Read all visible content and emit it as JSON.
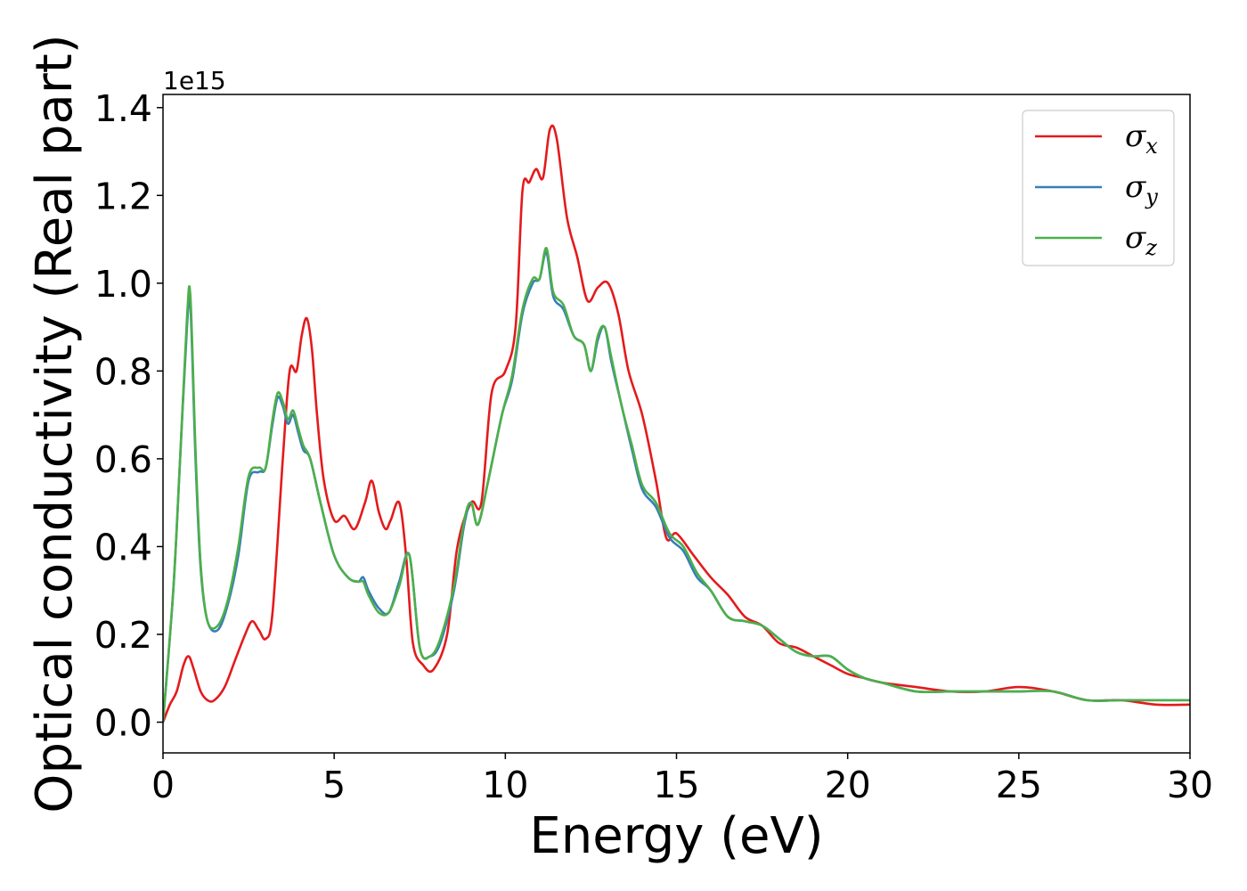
{
  "chart_data": {
    "type": "line",
    "xlabel": "Energy (eV)",
    "ylabel": "Optical conductivity (Real part)",
    "y_offset_label": "1e15",
    "y_scale": 1000000000000000.0,
    "xlim": [
      0,
      30
    ],
    "ylim": [
      -0.07,
      1.43
    ],
    "xticks": [
      0,
      5,
      10,
      15,
      20,
      25,
      30
    ],
    "xtick_labels": [
      "0",
      "5",
      "10",
      "15",
      "20",
      "25",
      "30"
    ],
    "yticks": [
      0.0,
      0.2,
      0.4,
      0.6,
      0.8,
      1.0,
      1.2,
      1.4
    ],
    "ytick_labels": [
      "0.0",
      "0.2",
      "0.4",
      "0.6",
      "0.8",
      "1.0",
      "1.2",
      "1.4"
    ],
    "grid": false,
    "legend_position": "top-right",
    "series": [
      {
        "name": "σx",
        "symbol": "σ",
        "subscript": "x",
        "color": "#e41a1c",
        "x": [
          0,
          0.2,
          0.4,
          0.6,
          0.75,
          0.9,
          1.1,
          1.3,
          1.5,
          1.8,
          2.1,
          2.4,
          2.6,
          2.8,
          3.0,
          3.2,
          3.5,
          3.7,
          3.9,
          4.05,
          4.2,
          4.35,
          4.5,
          4.7,
          5.0,
          5.3,
          5.6,
          5.9,
          6.1,
          6.3,
          6.5,
          6.65,
          6.9,
          7.1,
          7.3,
          7.6,
          7.9,
          8.3,
          8.6,
          9.0,
          9.3,
          9.6,
          10.0,
          10.3,
          10.5,
          10.7,
          10.9,
          11.1,
          11.3,
          11.5,
          11.8,
          12.1,
          12.4,
          12.7,
          13.0,
          13.3,
          13.6,
          14.0,
          14.4,
          14.7,
          15.0,
          15.5,
          16.0,
          16.5,
          17.0,
          17.5,
          18.0,
          18.5,
          19.0,
          19.5,
          20.0,
          20.5,
          21.0,
          22.0,
          23.0,
          24.0,
          25.0,
          26.0,
          27.0,
          28.0,
          29.0,
          30.0
        ],
        "y": [
          0.0,
          0.04,
          0.07,
          0.13,
          0.15,
          0.12,
          0.07,
          0.05,
          0.05,
          0.08,
          0.14,
          0.2,
          0.23,
          0.21,
          0.19,
          0.25,
          0.6,
          0.8,
          0.8,
          0.88,
          0.92,
          0.85,
          0.7,
          0.55,
          0.46,
          0.47,
          0.44,
          0.5,
          0.55,
          0.48,
          0.44,
          0.46,
          0.5,
          0.38,
          0.18,
          0.13,
          0.12,
          0.2,
          0.4,
          0.5,
          0.5,
          0.75,
          0.8,
          0.9,
          1.21,
          1.23,
          1.26,
          1.24,
          1.35,
          1.33,
          1.15,
          1.06,
          0.96,
          0.99,
          1.0,
          0.93,
          0.8,
          0.7,
          0.55,
          0.42,
          0.43,
          0.38,
          0.33,
          0.29,
          0.24,
          0.22,
          0.18,
          0.17,
          0.15,
          0.13,
          0.11,
          0.1,
          0.09,
          0.08,
          0.07,
          0.07,
          0.08,
          0.07,
          0.05,
          0.05,
          0.04,
          0.04
        ]
      },
      {
        "name": "σy",
        "symbol": "σ",
        "subscript": "y",
        "color": "#377eb8",
        "x": [
          0,
          0.3,
          0.5,
          0.7,
          0.8,
          0.95,
          1.1,
          1.3,
          1.6,
          1.9,
          2.2,
          2.5,
          2.8,
          3.0,
          3.2,
          3.35,
          3.5,
          3.65,
          3.8,
          3.95,
          4.1,
          4.3,
          4.6,
          5.0,
          5.4,
          5.7,
          5.85,
          6.0,
          6.3,
          6.6,
          6.9,
          7.2,
          7.5,
          7.8,
          8.1,
          8.5,
          8.8,
          9.0,
          9.2,
          9.5,
          9.9,
          10.2,
          10.5,
          10.8,
          11.0,
          11.2,
          11.4,
          11.7,
          12.0,
          12.3,
          12.5,
          12.7,
          12.9,
          13.1,
          13.4,
          13.7,
          14.0,
          14.4,
          14.8,
          15.2,
          15.6,
          16.0,
          16.5,
          17.0,
          17.5,
          18.0,
          18.5,
          19.0,
          19.5,
          20.0,
          20.5,
          21.0,
          22.0,
          23.0,
          24.0,
          25.0,
          26.0,
          27.0,
          28.0,
          29.0,
          30.0
        ],
        "y": [
          0.0,
          0.3,
          0.6,
          0.9,
          0.95,
          0.6,
          0.35,
          0.23,
          0.21,
          0.27,
          0.38,
          0.55,
          0.57,
          0.58,
          0.68,
          0.74,
          0.72,
          0.68,
          0.7,
          0.66,
          0.62,
          0.6,
          0.5,
          0.38,
          0.33,
          0.32,
          0.33,
          0.3,
          0.26,
          0.25,
          0.32,
          0.38,
          0.17,
          0.15,
          0.18,
          0.3,
          0.45,
          0.5,
          0.45,
          0.55,
          0.7,
          0.78,
          0.93,
          1.0,
          1.01,
          1.07,
          0.97,
          0.94,
          0.88,
          0.86,
          0.8,
          0.87,
          0.9,
          0.82,
          0.72,
          0.62,
          0.53,
          0.49,
          0.42,
          0.39,
          0.33,
          0.3,
          0.24,
          0.23,
          0.22,
          0.19,
          0.16,
          0.15,
          0.15,
          0.12,
          0.1,
          0.09,
          0.07,
          0.07,
          0.07,
          0.07,
          0.07,
          0.05,
          0.05,
          0.05,
          0.05
        ]
      },
      {
        "name": "σz",
        "symbol": "σ",
        "subscript": "z",
        "color": "#4daf4a",
        "x": [
          0,
          0.3,
          0.5,
          0.7,
          0.8,
          0.95,
          1.1,
          1.3,
          1.6,
          1.9,
          2.2,
          2.5,
          2.8,
          3.0,
          3.2,
          3.35,
          3.5,
          3.65,
          3.8,
          3.95,
          4.1,
          4.3,
          4.6,
          5.0,
          5.4,
          5.7,
          5.85,
          6.0,
          6.3,
          6.6,
          6.9,
          7.2,
          7.5,
          7.8,
          8.1,
          8.5,
          8.8,
          9.0,
          9.2,
          9.5,
          9.9,
          10.2,
          10.5,
          10.8,
          11.0,
          11.2,
          11.4,
          11.7,
          12.0,
          12.3,
          12.5,
          12.7,
          12.9,
          13.1,
          13.4,
          13.7,
          14.0,
          14.4,
          14.8,
          15.2,
          15.6,
          16.0,
          16.5,
          17.0,
          17.5,
          18.0,
          18.5,
          19.0,
          19.5,
          20.0,
          20.5,
          21.0,
          22.0,
          23.0,
          24.0,
          25.0,
          26.0,
          27.0,
          28.0,
          29.0,
          30.0
        ],
        "y": [
          0.0,
          0.3,
          0.6,
          0.92,
          0.97,
          0.62,
          0.36,
          0.23,
          0.22,
          0.28,
          0.4,
          0.56,
          0.58,
          0.58,
          0.69,
          0.75,
          0.73,
          0.69,
          0.71,
          0.67,
          0.63,
          0.6,
          0.5,
          0.38,
          0.33,
          0.32,
          0.32,
          0.29,
          0.25,
          0.25,
          0.31,
          0.38,
          0.17,
          0.15,
          0.19,
          0.31,
          0.46,
          0.5,
          0.45,
          0.55,
          0.7,
          0.79,
          0.94,
          1.01,
          1.01,
          1.08,
          0.98,
          0.95,
          0.88,
          0.86,
          0.8,
          0.88,
          0.9,
          0.83,
          0.72,
          0.63,
          0.54,
          0.5,
          0.43,
          0.4,
          0.34,
          0.3,
          0.24,
          0.23,
          0.22,
          0.19,
          0.16,
          0.15,
          0.15,
          0.12,
          0.1,
          0.09,
          0.07,
          0.07,
          0.07,
          0.07,
          0.07,
          0.05,
          0.05,
          0.05,
          0.05
        ]
      }
    ]
  }
}
